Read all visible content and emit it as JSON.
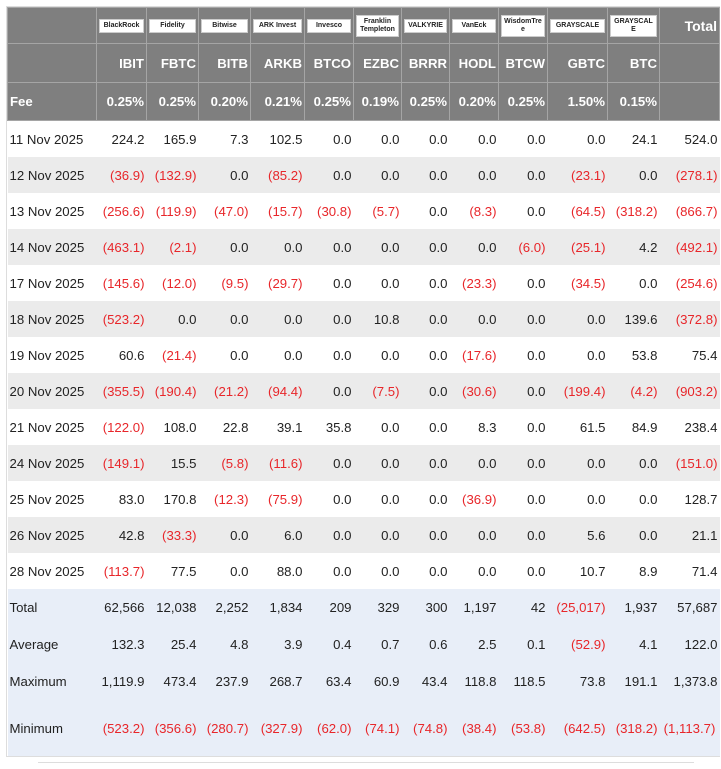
{
  "issuers": [
    "BlackRock",
    "Fidelity",
    "Bitwise",
    "ARK Invest",
    "Invesco",
    "Franklin Templeton",
    "VALKYRIE",
    "VanEck",
    "WisdomTree",
    "GRAYSCALE",
    "GRAYSCALE"
  ],
  "total_header": "Total",
  "tickers": [
    "IBIT",
    "FBTC",
    "BITB",
    "ARKB",
    "BTCO",
    "EZBC",
    "BRRR",
    "HODL",
    "BTCW",
    "GBTC",
    "BTC"
  ],
  "fee_label": "Fee",
  "fees": [
    "0.25%",
    "0.25%",
    "0.20%",
    "0.21%",
    "0.25%",
    "0.19%",
    "0.25%",
    "0.20%",
    "0.25%",
    "1.50%",
    "0.15%"
  ],
  "rows": [
    {
      "date": "11 Nov 2025",
      "values": [
        "224.2",
        "165.9",
        "7.3",
        "102.5",
        "0.0",
        "0.0",
        "0.0",
        "0.0",
        "0.0",
        "0.0",
        "24.1",
        "524.0"
      ]
    },
    {
      "date": "12 Nov 2025",
      "values": [
        "(36.9)",
        "(132.9)",
        "0.0",
        "(85.2)",
        "0.0",
        "0.0",
        "0.0",
        "0.0",
        "0.0",
        "(23.1)",
        "0.0",
        "(278.1)"
      ]
    },
    {
      "date": "13 Nov 2025",
      "values": [
        "(256.6)",
        "(119.9)",
        "(47.0)",
        "(15.7)",
        "(30.8)",
        "(5.7)",
        "0.0",
        "(8.3)",
        "0.0",
        "(64.5)",
        "(318.2)",
        "(866.7)"
      ]
    },
    {
      "date": "14 Nov 2025",
      "values": [
        "(463.1)",
        "(2.1)",
        "0.0",
        "0.0",
        "0.0",
        "0.0",
        "0.0",
        "0.0",
        "(6.0)",
        "(25.1)",
        "4.2",
        "(492.1)"
      ]
    },
    {
      "date": "17 Nov 2025",
      "values": [
        "(145.6)",
        "(12.0)",
        "(9.5)",
        "(29.7)",
        "0.0",
        "0.0",
        "0.0",
        "(23.3)",
        "0.0",
        "(34.5)",
        "0.0",
        "(254.6)"
      ]
    },
    {
      "date": "18 Nov 2025",
      "values": [
        "(523.2)",
        "0.0",
        "0.0",
        "0.0",
        "0.0",
        "10.8",
        "0.0",
        "0.0",
        "0.0",
        "0.0",
        "139.6",
        "(372.8)"
      ]
    },
    {
      "date": "19 Nov 2025",
      "values": [
        "60.6",
        "(21.4)",
        "0.0",
        "0.0",
        "0.0",
        "0.0",
        "0.0",
        "(17.6)",
        "0.0",
        "0.0",
        "53.8",
        "75.4"
      ]
    },
    {
      "date": "20 Nov 2025",
      "values": [
        "(355.5)",
        "(190.4)",
        "(21.2)",
        "(94.4)",
        "0.0",
        "(7.5)",
        "0.0",
        "(30.6)",
        "0.0",
        "(199.4)",
        "(4.2)",
        "(903.2)"
      ]
    },
    {
      "date": "21 Nov 2025",
      "values": [
        "(122.0)",
        "108.0",
        "22.8",
        "39.1",
        "35.8",
        "0.0",
        "0.0",
        "8.3",
        "0.0",
        "61.5",
        "84.9",
        "238.4"
      ]
    },
    {
      "date": "24 Nov 2025",
      "values": [
        "(149.1)",
        "15.5",
        "(5.8)",
        "(11.6)",
        "0.0",
        "0.0",
        "0.0",
        "0.0",
        "0.0",
        "0.0",
        "0.0",
        "(151.0)"
      ]
    },
    {
      "date": "25 Nov 2025",
      "values": [
        "83.0",
        "170.8",
        "(12.3)",
        "(75.9)",
        "0.0",
        "0.0",
        "0.0",
        "(36.9)",
        "0.0",
        "0.0",
        "0.0",
        "128.7"
      ]
    },
    {
      "date": "26 Nov 2025",
      "values": [
        "42.8",
        "(33.3)",
        "0.0",
        "6.0",
        "0.0",
        "0.0",
        "0.0",
        "0.0",
        "0.0",
        "5.6",
        "0.0",
        "21.1"
      ]
    },
    {
      "date": "28 Nov 2025",
      "values": [
        "(113.7)",
        "77.5",
        "0.0",
        "88.0",
        "0.0",
        "0.0",
        "0.0",
        "0.0",
        "0.0",
        "10.7",
        "8.9",
        "71.4"
      ]
    }
  ],
  "summary": [
    {
      "label": "Total",
      "values": [
        "62,566",
        "12,038",
        "2,252",
        "1,834",
        "209",
        "329",
        "300",
        "1,197",
        "42",
        "(25,017)",
        "1,937",
        "57,687"
      ]
    },
    {
      "label": "Average",
      "values": [
        "132.3",
        "25.4",
        "4.8",
        "3.9",
        "0.4",
        "0.7",
        "0.6",
        "2.5",
        "0.1",
        "(52.9)",
        "4.1",
        "122.0"
      ]
    },
    {
      "label": "Maximum",
      "values": [
        "1,119.9",
        "473.4",
        "237.9",
        "268.7",
        "63.4",
        "60.9",
        "43.4",
        "118.8",
        "118.5",
        "73.8",
        "191.1",
        "1,373.8"
      ]
    },
    {
      "label": "Minimum",
      "values": [
        "(523.2)",
        "(356.6)",
        "(280.7)",
        "(327.9)",
        "(62.0)",
        "(74.1)",
        "(74.8)",
        "(38.4)",
        "(53.8)",
        "(642.5)",
        "(318.2)",
        "(1,113.7)"
      ]
    }
  ],
  "colors": {
    "header_bg": "#7f7f7f",
    "negative": "#e8262a",
    "summary_bg": "#e8eef8",
    "stripe": "#ebebeb"
  }
}
